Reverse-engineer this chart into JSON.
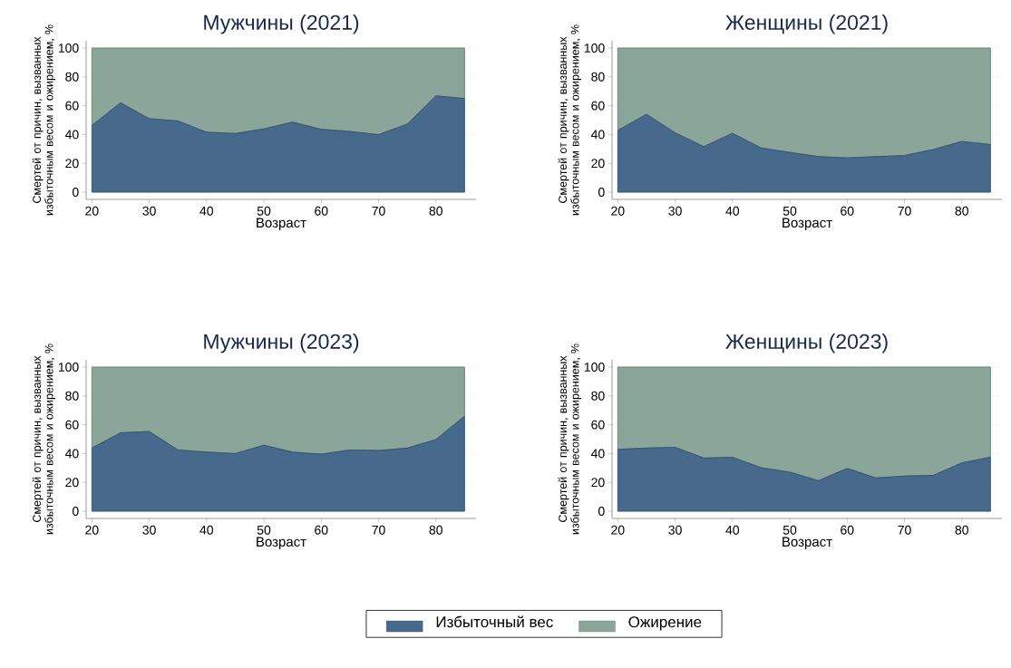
{
  "chart_data": [
    {
      "type": "area",
      "title": "Мужчины (2021)",
      "xlabel": "Возраст",
      "ylabel": "Смертей от причин, вызванных избыточным весом и ожирением, %",
      "stacked": true,
      "grid": "y",
      "x": [
        20,
        25,
        30,
        35,
        40,
        45,
        50,
        55,
        60,
        65,
        70,
        75,
        80,
        85
      ],
      "xlim": [
        19,
        87
      ],
      "ylim": [
        -5,
        105
      ],
      "xticks": [
        20,
        30,
        40,
        50,
        60,
        70,
        80
      ],
      "yticks": [
        0,
        20,
        40,
        60,
        80,
        100
      ],
      "series": [
        {
          "color": "#46698c",
          "values": [
            46.3,
            62,
            51,
            49.4,
            41.6,
            40.7,
            43.9,
            48.6,
            43.6,
            42.1,
            39.9,
            47.2,
            66.8,
            65
          ]
        },
        {
          "color": "#8aa69a",
          "values": [
            53.7,
            38,
            49,
            50.6,
            58.4,
            59.3,
            56.1,
            51.4,
            56.4,
            57.9,
            60.1,
            52.8,
            33.2,
            35
          ]
        }
      ]
    },
    {
      "type": "area",
      "title": "Женщины (2021)",
      "xlabel": "Возраст",
      "ylabel": "Смертей от причин, вызванных избыточным весом и ожирением, %",
      "stacked": true,
      "grid": "y",
      "x": [
        20,
        25,
        30,
        35,
        40,
        45,
        50,
        55,
        60,
        65,
        70,
        75,
        80,
        85
      ],
      "xlim": [
        19,
        87
      ],
      "ylim": [
        -5,
        105
      ],
      "xticks": [
        20,
        30,
        40,
        50,
        60,
        70,
        80
      ],
      "yticks": [
        0,
        20,
        40,
        60,
        80,
        100
      ],
      "series": [
        {
          "color": "#46698c",
          "values": [
            42.8,
            54,
            41.2,
            31.6,
            40.8,
            30.7,
            27.6,
            24.7,
            23.8,
            24.7,
            25.4,
            29.6,
            35.2,
            33
          ]
        },
        {
          "color": "#8aa69a",
          "values": [
            57.2,
            46,
            58.8,
            68.4,
            59.2,
            69.3,
            72.4,
            75.3,
            76.2,
            75.3,
            74.6,
            70.4,
            64.8,
            67
          ]
        }
      ]
    },
    {
      "type": "area",
      "title": "Мужчины (2023)",
      "xlabel": "Возраст",
      "ylabel": "Смертей от причин, вызванных избыточным весом и ожирением, %",
      "stacked": true,
      "grid": "y",
      "x": [
        20,
        25,
        30,
        35,
        40,
        45,
        50,
        55,
        60,
        65,
        70,
        75,
        80,
        85
      ],
      "xlim": [
        19,
        87
      ],
      "ylim": [
        -5,
        105
      ],
      "xticks": [
        20,
        30,
        40,
        50,
        60,
        70,
        80
      ],
      "yticks": [
        0,
        20,
        40,
        60,
        80,
        100
      ],
      "series": [
        {
          "color": "#46698c",
          "values": [
            43.8,
            54.4,
            55.3,
            42.5,
            41,
            40,
            45.8,
            41,
            39.6,
            42.5,
            42.1,
            43.8,
            49.7,
            66
          ]
        },
        {
          "color": "#8aa69a",
          "values": [
            56.2,
            45.6,
            44.7,
            57.5,
            59,
            60,
            54.2,
            59,
            60.4,
            57.5,
            57.9,
            56.2,
            50.3,
            34
          ]
        }
      ]
    },
    {
      "type": "area",
      "title": "Женщины (2023)",
      "xlabel": "Возраст",
      "ylabel": "Смертей от причин, вызванных избыточным весом и ожирением, %",
      "stacked": true,
      "grid": "y",
      "legend": "bottom",
      "x": [
        20,
        25,
        30,
        35,
        40,
        45,
        50,
        55,
        60,
        65,
        70,
        75,
        80,
        85
      ],
      "xlim": [
        19,
        87
      ],
      "ylim": [
        -5,
        105
      ],
      "xticks": [
        20,
        30,
        40,
        50,
        60,
        70,
        80
      ],
      "yticks": [
        0,
        20,
        40,
        60,
        80,
        100
      ],
      "series": [
        {
          "name": "Избыточный вес",
          "color": "#46698c",
          "values": [
            42.9,
            43.8,
            44.3,
            36.9,
            37.4,
            30.2,
            27.1,
            21.2,
            29.7,
            23.1,
            24.4,
            24.8,
            33.5,
            37.5
          ]
        },
        {
          "name": "Ожирение",
          "color": "#8aa69a",
          "values": [
            57.1,
            56.2,
            55.7,
            63.1,
            62.6,
            69.8,
            72.9,
            78.8,
            70.3,
            76.9,
            75.6,
            75.2,
            66.5,
            62.5
          ]
        }
      ]
    }
  ]
}
